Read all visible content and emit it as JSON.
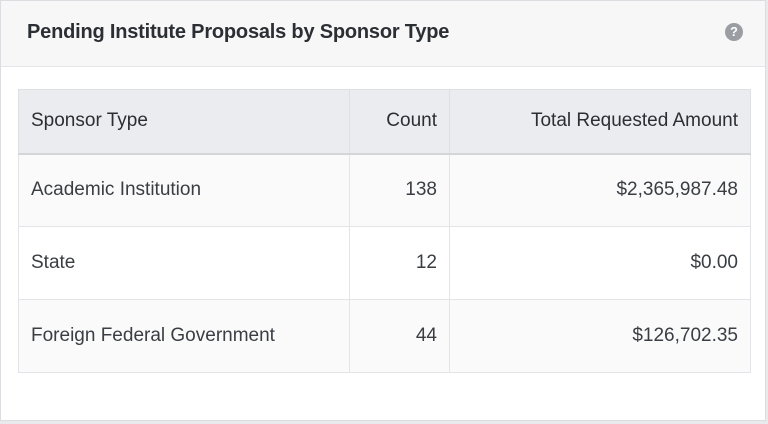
{
  "card": {
    "title": "Pending Institute Proposals by Sponsor Type",
    "help_icon": "question-mark-icon",
    "help_symbol": "?"
  },
  "table": {
    "headers": {
      "type": "Sponsor Type",
      "count": "Count",
      "amount": "Total Requested Amount"
    },
    "rows": [
      {
        "type": "Academic Institution",
        "count": "138",
        "amount": "$2,365,987.48"
      },
      {
        "type": "State",
        "count": "12",
        "amount": "$0.00"
      },
      {
        "type": "Foreign Federal Government",
        "count": "44",
        "amount": "$126,702.35"
      }
    ]
  }
}
